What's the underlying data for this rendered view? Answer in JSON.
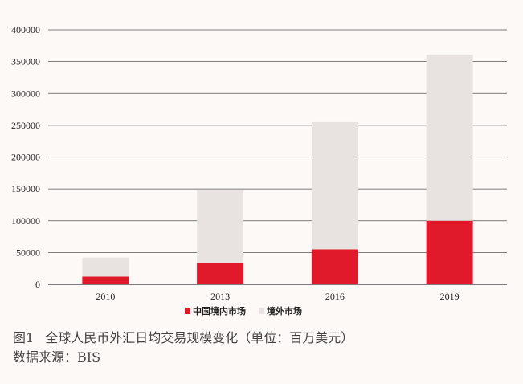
{
  "chart_data": {
    "type": "bar",
    "stacked": true,
    "categories": [
      "2010",
      "2013",
      "2016",
      "2019"
    ],
    "series": [
      {
        "name": "中国境内市场",
        "values": [
          12000,
          33000,
          55000,
          100000
        ],
        "color": "#e0192b"
      },
      {
        "name": "境外市场",
        "values": [
          30000,
          115000,
          200000,
          261000
        ],
        "color": "#e8e3e1"
      }
    ],
    "ylim": [
      0,
      400000
    ],
    "yticks": [
      "0",
      "50000",
      "100000",
      "150000",
      "200000",
      "250000",
      "300000",
      "350000",
      "400000"
    ],
    "grid": true,
    "legend_position": "bottom"
  },
  "caption": {
    "figure_number": "图1",
    "title": "全球人民币外汇日均交易规模变化（单位：百万美元）",
    "source": "数据来源：BIS"
  }
}
